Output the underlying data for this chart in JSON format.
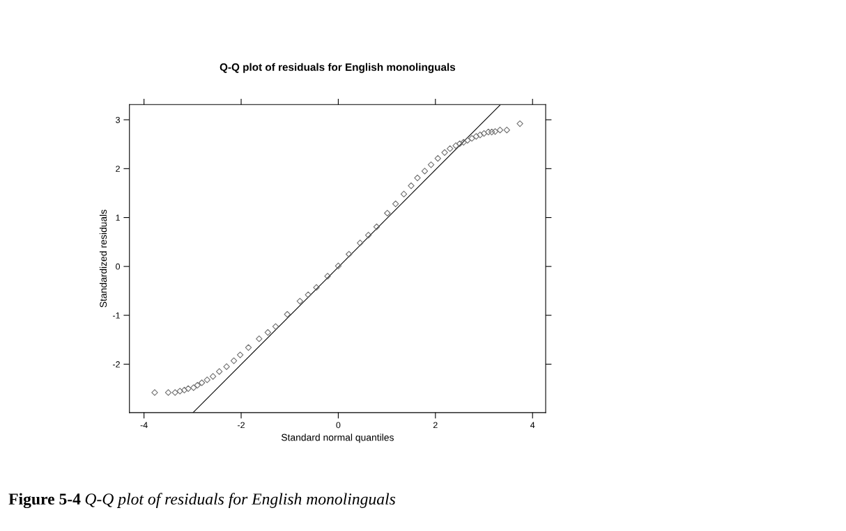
{
  "chart_data": {
    "type": "scatter",
    "title": "Q-Q plot of residuals for English monolinguals",
    "xlabel": "Standard normal quantiles",
    "ylabel": "Standardized residuals",
    "series": [
      {
        "color": "#707070",
        "x": [
          -3.78,
          -3.5,
          -3.36,
          -3.26,
          -3.17,
          -3.09,
          -2.98,
          -2.9,
          -2.81,
          -2.7,
          -2.58,
          -2.45,
          -2.3,
          -2.15,
          -2.02,
          -1.85,
          -1.63,
          -1.45,
          -1.29,
          -1.05,
          -0.79,
          -0.62,
          -0.45,
          -0.22,
          0,
          0.22,
          0.45,
          0.62,
          0.79,
          1.01,
          1.18,
          1.35,
          1.5,
          1.63,
          1.78,
          1.91,
          2.05,
          2.19,
          2.3,
          2.42,
          2.5,
          2.58,
          2.66,
          2.75,
          2.84,
          2.92,
          3.0,
          3.09,
          3.16,
          3.23,
          3.33,
          3.47,
          3.74
        ],
        "values": [
          -2.58,
          -2.58,
          -2.58,
          -2.55,
          -2.53,
          -2.5,
          -2.48,
          -2.43,
          -2.38,
          -2.32,
          -2.25,
          -2.15,
          -2.05,
          -1.93,
          -1.81,
          -1.66,
          -1.48,
          -1.35,
          -1.23,
          -0.98,
          -0.71,
          -0.58,
          -0.43,
          -0.2,
          0.01,
          0.25,
          0.48,
          0.64,
          0.81,
          1.09,
          1.28,
          1.48,
          1.65,
          1.81,
          1.95,
          2.08,
          2.21,
          2.33,
          2.41,
          2.47,
          2.51,
          2.54,
          2.58,
          2.62,
          2.66,
          2.69,
          2.72,
          2.75,
          2.75,
          2.76,
          2.79,
          2.79,
          2.92
        ]
      },
      {
        "type": "line",
        "marker": "none",
        "color": "#000000",
        "x": [
          -2.99,
          3.33
        ],
        "values": [
          -2.99,
          3.3
        ]
      }
    ],
    "marker": "diamond",
    "xlim": [
      -4.3,
      4.27
    ],
    "ylim": [
      -2.99,
      3.31
    ],
    "xticks": [
      -4,
      -2,
      0,
      2,
      4
    ],
    "yticks": [
      -2,
      -1,
      0,
      1,
      2,
      3
    ],
    "grid": false,
    "legend": false,
    "annotations": [
      "Figure 5-4",
      "Q-Q plot of residuals for English monolinguals"
    ]
  }
}
